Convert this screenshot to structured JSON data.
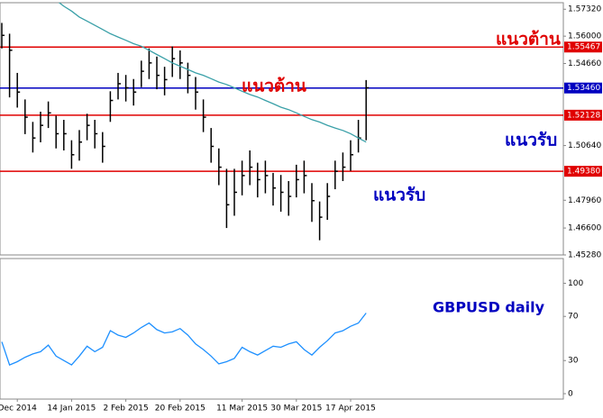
{
  "chart_data": [
    {
      "type": "ohlc",
      "high": [
        1.5665,
        1.5612,
        1.542,
        1.529,
        1.518,
        1.523,
        1.528,
        1.521,
        1.519,
        1.509,
        1.514,
        1.522,
        1.519,
        1.513,
        1.533,
        1.542,
        1.541,
        1.539,
        1.548,
        1.554,
        1.55,
        1.545,
        1.555,
        1.553,
        1.547,
        1.54,
        1.529,
        1.515,
        1.505,
        1.495,
        1.495,
        1.499,
        1.504,
        1.498,
        1.499,
        1.493,
        1.492,
        1.489,
        1.497,
        1.499,
        1.488,
        1.479,
        1.488,
        1.499,
        1.503,
        1.509,
        1.519,
        1.5385
      ],
      "low": [
        1.554,
        1.53,
        1.525,
        1.512,
        1.503,
        1.508,
        1.515,
        1.505,
        1.504,
        1.495,
        1.499,
        1.509,
        1.505,
        1.498,
        1.518,
        1.529,
        1.528,
        1.526,
        1.535,
        1.539,
        1.534,
        1.531,
        1.54,
        1.539,
        1.532,
        1.524,
        1.513,
        1.498,
        1.487,
        1.466,
        1.472,
        1.482,
        1.487,
        1.481,
        1.483,
        1.477,
        1.474,
        1.472,
        1.481,
        1.483,
        1.469,
        1.46,
        1.47,
        1.485,
        1.489,
        1.494,
        1.503,
        1.509
      ],
      "close": [
        1.5604,
        1.5531,
        1.5326,
        1.5203,
        1.5101,
        1.5163,
        1.5224,
        1.5122,
        1.5122,
        1.5019,
        1.5081,
        1.5163,
        1.5122,
        1.506,
        1.5285,
        1.5367,
        1.5347,
        1.5326,
        1.5428,
        1.5469,
        1.5408,
        1.5387,
        1.549,
        1.5469,
        1.5408,
        1.5326,
        1.5203,
        1.506,
        1.4958,
        1.4774,
        1.4835,
        1.4917,
        1.4958,
        1.4897,
        1.4917,
        1.4856,
        1.4835,
        1.4815,
        1.4897,
        1.4917,
        1.4794,
        1.4713,
        1.4815,
        1.4938,
        1.4958,
        1.5019,
        1.5101,
        1.5347
      ],
      "color": "#000000",
      "moving_average": {
        "color": "#3aa0a8",
        "values": [
          null,
          null,
          null,
          null,
          null,
          null,
          null,
          1.5776,
          1.5747,
          1.5723,
          1.5694,
          1.5674,
          1.5653,
          1.5633,
          1.5612,
          1.5596,
          1.558,
          1.5563,
          1.5551,
          1.5531,
          1.551,
          1.549,
          1.5469,
          1.5453,
          1.5437,
          1.542,
          1.5408,
          1.5392,
          1.5375,
          1.5363,
          1.5347,
          1.533,
          1.5314,
          1.5302,
          1.5285,
          1.5269,
          1.5252,
          1.524,
          1.5224,
          1.5207,
          1.5191,
          1.5179,
          1.5163,
          1.515,
          1.5138,
          1.5122,
          1.5101,
          1.5081
        ]
      },
      "ylim": [
        1.4528,
        1.5764
      ],
      "yticks": [
        {
          "value": 1.5732,
          "label": "1.57320"
        },
        {
          "value": 1.56,
          "label": "1.56000"
        },
        {
          "value": 1.5466,
          "label": "1.54660"
        },
        {
          "value": 1.5064,
          "label": "1.50640"
        },
        {
          "value": 1.4796,
          "label": "1.47960"
        },
        {
          "value": 1.466,
          "label": "1.46600"
        },
        {
          "value": 1.4528,
          "label": "1.45280"
        }
      ],
      "levels": [
        {
          "value": 1.55467,
          "label": "1.55467",
          "color": "#e00000"
        },
        {
          "value": 1.5346,
          "label": "1.53460",
          "color": "#0000c0"
        },
        {
          "value": 1.52128,
          "label": "1.52128",
          "color": "#e00000"
        },
        {
          "value": 1.4938,
          "label": "1.49380",
          "color": "#e00000"
        }
      ],
      "annotations": [
        {
          "text": "แนวต้าน",
          "color": "#e00000"
        },
        {
          "text": "แนวต้าน",
          "color": "#e00000"
        },
        {
          "text": "แนวรับ",
          "color": "#0000c0"
        },
        {
          "text": "แนวรับ",
          "color": "#0000c0"
        }
      ]
    },
    {
      "type": "line",
      "categories": [
        null,
        null,
        "Dec 2014",
        null,
        null,
        null,
        null,
        null,
        null,
        "14 Jan 2015",
        null,
        null,
        null,
        null,
        null,
        null,
        "2 Feb 2015",
        null,
        null,
        null,
        null,
        null,
        null,
        "20 Feb 2015",
        null,
        null,
        null,
        null,
        null,
        null,
        null,
        "11 Mar 2015",
        null,
        null,
        null,
        null,
        null,
        null,
        "30 Mar 2015",
        null,
        null,
        null,
        null,
        null,
        null,
        "17 Apr 2015",
        null,
        null
      ],
      "series": [
        {
          "color": "#1e90ff",
          "values": [
            47,
            26,
            29,
            33,
            36,
            38,
            44,
            34,
            30,
            26,
            34,
            43,
            38,
            42,
            57,
            53,
            51,
            55,
            60,
            64,
            58,
            55,
            56,
            59,
            53,
            45,
            40,
            34,
            27,
            29,
            32,
            42,
            38,
            35,
            39,
            43,
            42,
            45,
            47,
            40,
            35,
            42,
            48,
            55,
            57,
            61,
            64,
            73
          ]
        }
      ],
      "ylim": [
        -4.9,
        122.4
      ],
      "yticks": [
        100,
        70,
        30,
        0
      ],
      "annotations": [
        {
          "text": "GBPUSD daily",
          "color": "#0000c0"
        }
      ]
    }
  ]
}
